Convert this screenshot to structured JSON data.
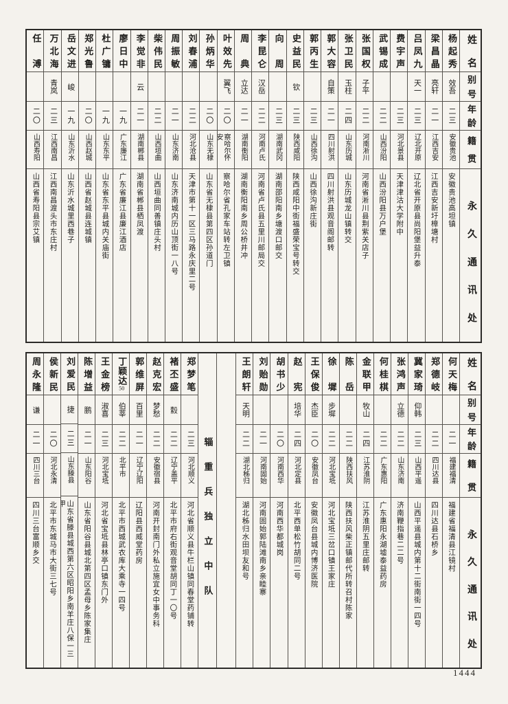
{
  "page": {
    "number": "1444"
  },
  "colors": {
    "paper": "#f4f2ed",
    "ink": "#1e1d1b",
    "line": "#55524d"
  },
  "headers": {
    "name": "姓名",
    "alias": "别号",
    "age": "年龄",
    "origin": "籍贯",
    "address": "永久通讯处"
  },
  "unit_divider": "辎重兵独立中队",
  "tables": [
    {
      "section": "top",
      "columns": [
        {
          "name": "杨起秀",
          "alias": "效吾",
          "age": "二三",
          "origin": "安徽贵池",
          "address": "安徽贵池高坦镇"
        },
        {
          "name": "梁昌晶",
          "alias": "亮轩",
          "age": "二一",
          "origin": "江西吉安",
          "address": "江西吉安新圩樟塘村"
        },
        {
          "name": "吕凤九",
          "alias": "天一",
          "age": "二三",
          "origin": "辽北开原",
          "address": "辽北省开原县尚阳堡益升泰"
        },
        {
          "name": "费宇声",
          "alias": "",
          "age": "二三",
          "origin": "河北景县",
          "address": "天津津沽大学附中"
        },
        {
          "name": "武锡成",
          "alias": "",
          "age": "二二",
          "origin": "山西汾阳",
          "address": "山西汾阳县万户堡"
        },
        {
          "name": "张国权",
          "alias": "子平",
          "age": "二二",
          "origin": "河南淅川",
          "address": "河南省淅川县荆紫关店子"
        },
        {
          "name": "张卫民",
          "alias": "玉柱",
          "age": "二四",
          "origin": "山东历城",
          "address": "山东历城龙山镇转交"
        },
        {
          "name": "郭大容",
          "alias": "自策",
          "age": "二一",
          "origin": "四川射洪",
          "address": "四川射洪县观音阁邮转"
        },
        {
          "name": "郭丙生",
          "alias": "",
          "age": "二三",
          "origin": "山西徐沟",
          "address": "山西徐沟新庄街"
        },
        {
          "name": "史益民",
          "alias": "钦",
          "age": "二三",
          "origin": "陕西咸阳",
          "address": "陕西咸阳中街福盛荣宝号转交"
        },
        {
          "name": "向周",
          "alias": "",
          "age": "二三",
          "origin": "湖南武冈",
          "address": "湖南邵阳南乡塘渡口邮交"
        },
        {
          "name": "李昆仑",
          "alias": "汉岳",
          "age": "二二",
          "origin": "河南卢氏",
          "address": "河南省卢氏县五里川邮局交"
        },
        {
          "name": "周典",
          "alias": "立达",
          "age": "二一",
          "origin": "湖南衡阳",
          "address": "湖南衡阳南乡周公桥井冲"
        },
        {
          "name": "叶效先",
          "alias": "翼飞",
          "age": "二〇",
          "origin": "察哈尔怀安",
          "address": "察哈尔省孔家车站转左卫镇"
        },
        {
          "name": "孙炳华",
          "alias": "",
          "age": "二〇",
          "origin": "山东无棣",
          "address": "山东省无棣县第四区孙道门"
        },
        {
          "name": "刘春浦",
          "alias": "",
          "age": "二二",
          "origin": "河北沧县",
          "address": "天津市第十一区三马路永庆里二号"
        },
        {
          "name": "周振敏",
          "alias": "",
          "age": "二一",
          "origin": "山东济南",
          "address": "山东济南城内历山顶街一八号"
        },
        {
          "name": "柴伟民",
          "alias": "",
          "age": "二二",
          "origin": "山西垣曲",
          "address": "山西垣曲同善镇庄头村"
        },
        {
          "name": "李觉非",
          "alias": "云",
          "age": "二一",
          "origin": "湖南郴县",
          "address": "湖南省郴县栖凤渡"
        },
        {
          "name": "廖日中",
          "alias": "",
          "age": "一九",
          "origin": "广东廉江",
          "address": "广东省廉江县廉江酒店"
        },
        {
          "name": "杜广镛",
          "alias": "",
          "age": "一九",
          "origin": "山东东平",
          "address": "山东省东平县城内关庙街"
        },
        {
          "name": "郑光鲁",
          "alias": "",
          "age": "二〇",
          "origin": "山西赵城",
          "address": "山西省赵城县连城镇"
        },
        {
          "name": "岳文进",
          "alias": "峻",
          "age": "一九",
          "origin": "山东沂水",
          "address": "山东沂水城里西巷子"
        },
        {
          "name": "万北海",
          "alias": "青岚",
          "age": "二三",
          "origin": "江西南昌",
          "address": "江西南昌渡头市东庄村"
        },
        {
          "name": "任溥",
          "alias": "",
          "age": "二〇",
          "origin": "山西寿阳",
          "address": "山西省寿阳县宗艾镇"
        }
      ]
    },
    {
      "section": "bottom",
      "columns": [
        {
          "name": "何天梅",
          "alias": "",
          "age": "二一",
          "origin": "福建福清",
          "address": "福建省福清县江镜村"
        },
        {
          "name": "郑德岐",
          "alias": "",
          "age": "二二",
          "origin": "四川达县",
          "address": "四川达县石桥乡"
        },
        {
          "name": "冀家琦",
          "alias": "仰韩",
          "age": "二三",
          "origin": "山西平遥",
          "address": "山西平遥县城内第十二街南街一四号"
        },
        {
          "name": "张鸿声",
          "alias": "立德",
          "age": "二二",
          "origin": "山东济南",
          "address": "济南鞭指巷二二号"
        },
        {
          "name": "何桂棋",
          "alias": "",
          "age": "二二",
          "origin": "广东惠阳",
          "address": "广东惠阳永湖墟泰益药房"
        },
        {
          "name": "金联甲",
          "alias": "牧山",
          "age": "二四",
          "origin": "江苏淮阴",
          "address": "江苏淮阴五里庄邮转"
        },
        {
          "name": "陈岳",
          "alias": "",
          "age": "二二",
          "origin": "陕西扶风",
          "address": "陕西扶风柴正镇邮代所转召村陈家"
        },
        {
          "name": "徐墀",
          "alias": "步墀",
          "age": "二二",
          "origin": "河北宝坻",
          "address": "河北宝坻三岔口镇王家庄"
        },
        {
          "name": "王保俊",
          "alias": "杰臣",
          "age": "二〇",
          "origin": "安徽凤台",
          "address": "安徽凤台县城内博济医院"
        },
        {
          "name": "赵宪",
          "alias": "培华",
          "age": "二四",
          "origin": "河北定县",
          "address": "北平西单松竹胡同二号"
        },
        {
          "name": "胡书少",
          "alias": "",
          "age": "二〇",
          "origin": "河南西华",
          "address": "河南西华都城岗"
        },
        {
          "name": "刘贻勋",
          "alias": "",
          "age": "二一",
          "origin": "河南固始",
          "address": "河南固始郭陆滩南乡亲睦寨"
        },
        {
          "name": "王朗轩",
          "alias": "天明",
          "age": "二二",
          "origin": "湖北秭归",
          "address": "湖北秭归水田坝友和号"
        },
        {
          "type": "spacer"
        },
        {
          "type": "divider",
          "label": "辎重兵独立中队"
        },
        {
          "name": "郑梦笔",
          "alias": "",
          "age": "二三",
          "origin": "河北顺义",
          "address": "河北省顺义县牛栏山镇同春堂药铺转"
        },
        {
          "name": "褚丕盛",
          "alias": "縠",
          "age": "二二",
          "origin": "辽宁盖平",
          "address": "北平市府右街观音堂胡同丁一〇号"
        },
        {
          "name": "赵克宏",
          "alias": "梦愁",
          "age": "二二",
          "origin": "安徽宿县",
          "address": "河南开封南门外私立施宜女中事务科"
        },
        {
          "name": "郭维屏",
          "alias": "百里",
          "age": "二一",
          "origin": "辽宁辽阳",
          "address": "辽阳县西威堂药房"
        },
        {
          "name": "丁颖达",
          "note": "50",
          "alias": "伯莘",
          "age": "二二",
          "origin": "北平市",
          "address": "北平市西城武衣库大乘寺一四号"
        },
        {
          "name": "王金榜",
          "alias": "淑喜",
          "age": "二三",
          "origin": "河北宝坻",
          "address": "河北省宝坻县林亭口镇东门外"
        },
        {
          "name": "陈增益",
          "alias": "鹏",
          "age": "二一",
          "origin": "山东阳谷",
          "address": "山东省阳谷县城北第四区孟母乡陈家集庄"
        },
        {
          "name": "刘爱民",
          "alias": "捷",
          "age": "二三",
          "origin": "山东滕县",
          "address": "山东省滕县城西第六区昭阳乡南羊庄八保一三甲"
        },
        {
          "name": "侯新民",
          "alias": "",
          "age": "二〇",
          "origin": "河北永清",
          "address": "北平市东城马市大街三七号"
        },
        {
          "name": "周永隆",
          "alias": "谦",
          "age": "二一",
          "origin": "四川三台",
          "address": "四川三台富顺乡交"
        }
      ]
    }
  ]
}
